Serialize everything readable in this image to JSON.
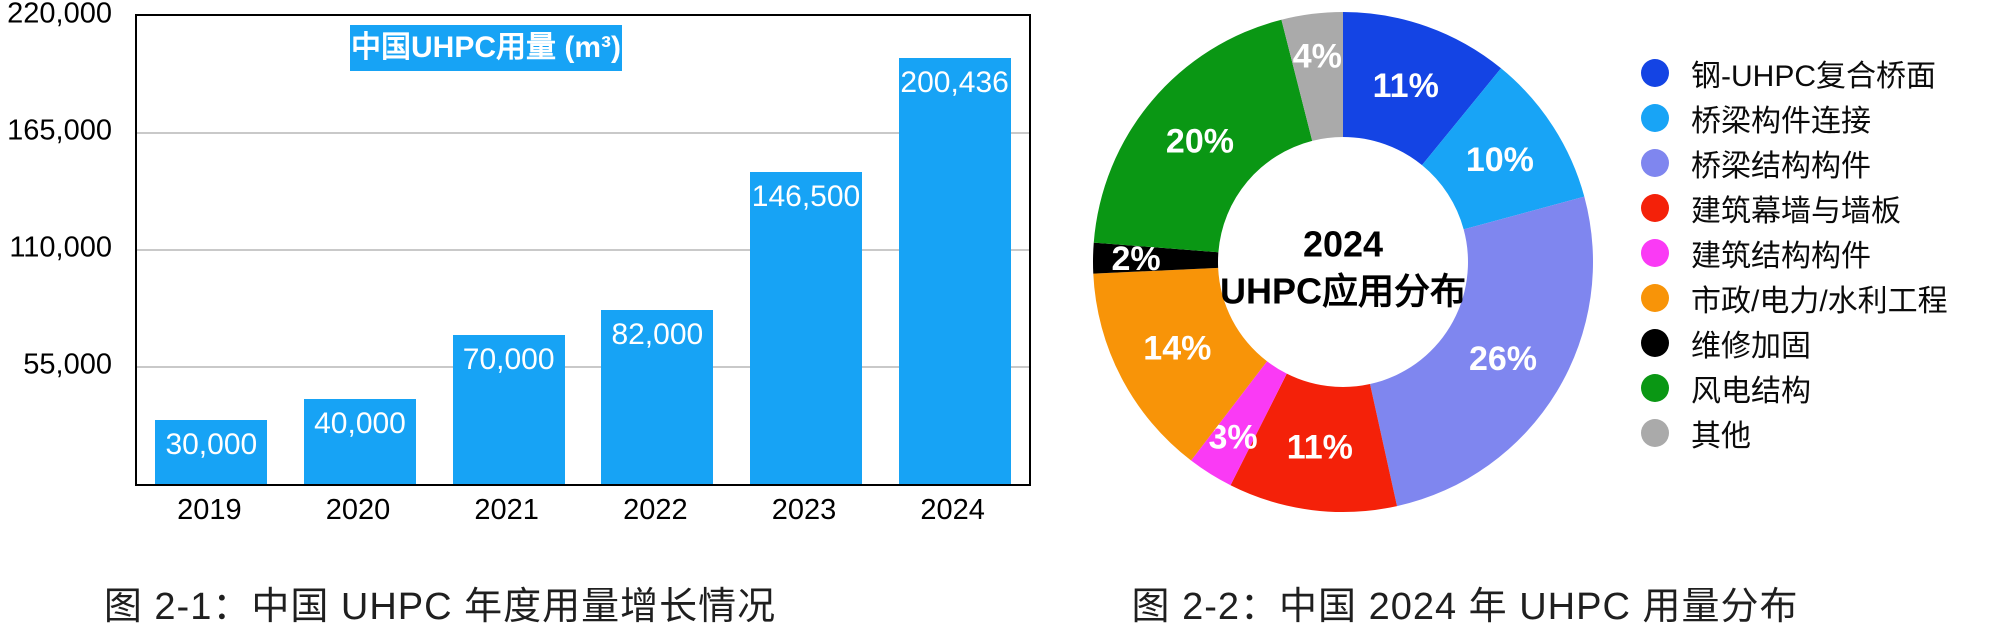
{
  "figure1": {
    "title": "中国UHPC用量 (m³)",
    "caption": "图 2-1：中国 UHPC 年度用量增长情况"
  },
  "figure2": {
    "center_line1": "2024",
    "center_line2": "UHPC应用分布",
    "caption": "图 2-2：中国 2024 年 UHPC 用量分布"
  },
  "colors": {
    "bar_blue": "#17A3F5",
    "title_box_blue": "#17A3F5",
    "gridline_gray": "#c9c9c9",
    "axis_black": "#000000"
  },
  "chart_data": [
    {
      "type": "bar",
      "title": "中国UHPC用量 (m³)",
      "categories": [
        "2019",
        "2020",
        "2021",
        "2022",
        "2023",
        "2024"
      ],
      "values": [
        30000,
        40000,
        70000,
        82000,
        146500,
        200436
      ],
      "value_labels": [
        "30,000",
        "40,000",
        "70,000",
        "82,000",
        "146,500",
        "200,436"
      ],
      "xlabel": "",
      "ylabel": "",
      "ylim": [
        0,
        220000
      ],
      "yticks": [
        {
          "value": 220000,
          "label": "220,000"
        },
        {
          "value": 165000,
          "label": "165,000"
        },
        {
          "value": 110000,
          "label": "110,000"
        },
        {
          "value": 55000,
          "label": "55,000"
        }
      ],
      "grid": true,
      "bar_color": "#17A3F5",
      "value_label_position": "inside-top",
      "caption": "图 2-1：中国 UHPC 年度用量增长情况"
    },
    {
      "type": "pie",
      "donut": true,
      "start_angle_deg": 0,
      "direction": "clockwise",
      "center_label": [
        "2024",
        "UHPC应用分布"
      ],
      "legend_position": "right",
      "slices": [
        {
          "label": "钢-UHPC复合桥面",
          "pct": 11,
          "pct_label": "11%",
          "color": "#1444E4"
        },
        {
          "label": "桥梁构件连接",
          "pct": 10,
          "pct_label": "10%",
          "color": "#18A4F6"
        },
        {
          "label": "桥梁结构构件",
          "pct": 26,
          "pct_label": "26%",
          "color": "#7F86EF"
        },
        {
          "label": "建筑幕墙与墙板",
          "pct": 11,
          "pct_label": "11%",
          "color": "#F42109"
        },
        {
          "label": "建筑结构构件",
          "pct": 3,
          "pct_label": "3%",
          "color": "#FA3AF5"
        },
        {
          "label": "市政/电力/水利工程",
          "pct": 14,
          "pct_label": "14%",
          "color": "#F89408"
        },
        {
          "label": "维修加固",
          "pct": 2,
          "pct_label": "2%",
          "color": "#000000"
        },
        {
          "label": "风电结构",
          "pct": 20,
          "pct_label": "20%",
          "color": "#0A9714"
        },
        {
          "label": "其他",
          "pct": 4,
          "pct_label": "4%",
          "color": "#AAAAAA"
        }
      ],
      "caption": "图 2-2：中国 2024 年 UHPC 用量分布"
    }
  ]
}
